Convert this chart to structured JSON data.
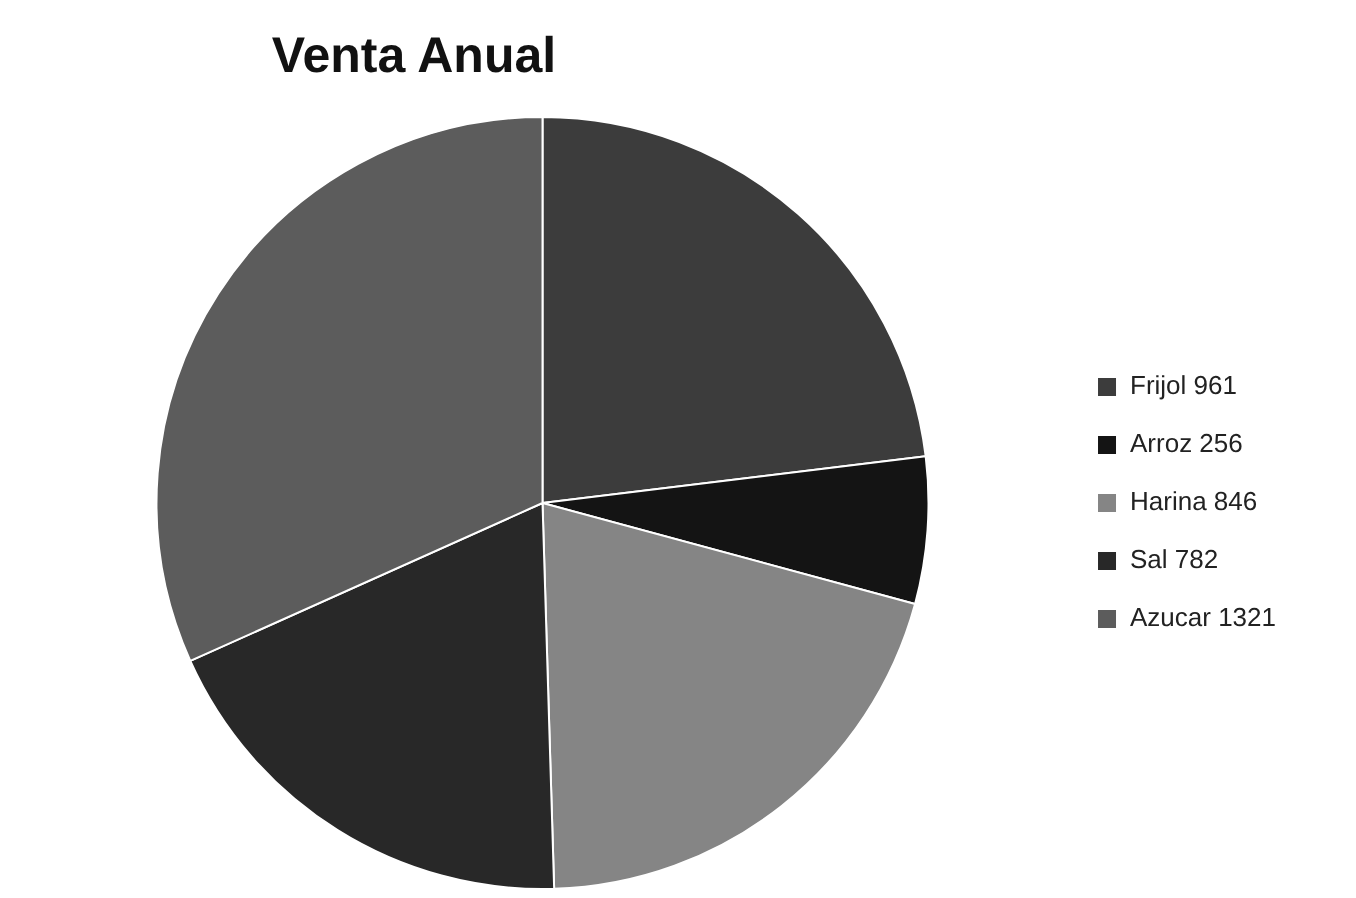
{
  "chart_data": {
    "type": "pie",
    "title": "Venta Anual",
    "categories": [
      "Frijol 961",
      "Arroz 256",
      "Harina 846",
      "Sal 782",
      "Azucar 1321"
    ],
    "values": [
      961,
      256,
      846,
      782,
      1321
    ],
    "colors": [
      "#3c3c3c",
      "#141414",
      "#858585",
      "#282828",
      "#5c5c5c"
    ],
    "legend": "right"
  }
}
